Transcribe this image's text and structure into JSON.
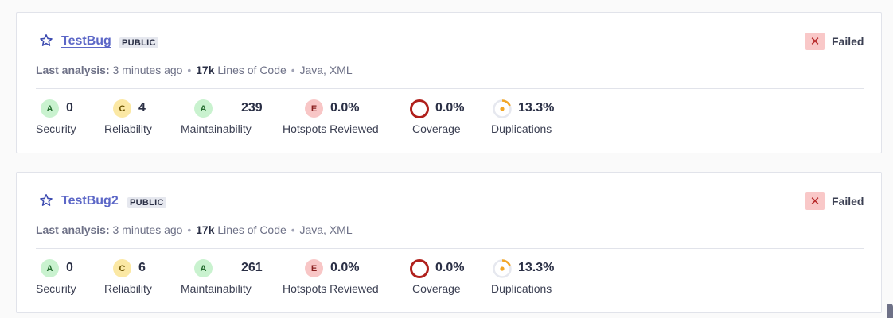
{
  "projects": [
    {
      "name": "TestBug",
      "visibility": "PUBLIC",
      "quality_gate": "Failed",
      "meta": {
        "last_analysis_label": "Last analysis:",
        "last_analysis_value": "3 minutes ago",
        "loc_value": "17k",
        "loc_label": "Lines of Code",
        "languages": "Java, XML"
      },
      "metrics": {
        "security": {
          "grade": "A",
          "value": "0",
          "label": "Security"
        },
        "reliability": {
          "grade": "C",
          "value": "4",
          "label": "Reliability"
        },
        "maintainability": {
          "grade": "A",
          "value": "239",
          "label": "Maintainability"
        },
        "hotspots": {
          "grade": "E",
          "value": "0.0%",
          "label": "Hotspots Reviewed"
        },
        "coverage": {
          "value": "0.0%",
          "label": "Coverage",
          "percent": 0.0
        },
        "duplications": {
          "value": "13.3%",
          "label": "Duplications",
          "percent": 13.3
        }
      }
    },
    {
      "name": "TestBug2",
      "visibility": "PUBLIC",
      "quality_gate": "Failed",
      "meta": {
        "last_analysis_label": "Last analysis:",
        "last_analysis_value": "3 minutes ago",
        "loc_value": "17k",
        "loc_label": "Lines of Code",
        "languages": "Java, XML"
      },
      "metrics": {
        "security": {
          "grade": "A",
          "value": "0",
          "label": "Security"
        },
        "reliability": {
          "grade": "C",
          "value": "6",
          "label": "Reliability"
        },
        "maintainability": {
          "grade": "A",
          "value": "261",
          "label": "Maintainability"
        },
        "hotspots": {
          "grade": "E",
          "value": "0.0%",
          "label": "Hotspots Reviewed"
        },
        "coverage": {
          "value": "0.0%",
          "label": "Coverage",
          "percent": 0.0
        },
        "duplications": {
          "value": "13.3%",
          "label": "Duplications",
          "percent": 13.3
        }
      }
    }
  ],
  "icons": {
    "star": "star-icon",
    "gate_failed": "close-icon",
    "gate_symbol": "✕"
  },
  "colors": {
    "link": "#5c67c7",
    "failed_bg": "#f9c8c8",
    "failed_fg": "#b62727",
    "coverage_ring": "#b0201c",
    "duplication_ring": "#f2a626",
    "grade_a": "#c9f2cf",
    "grade_c": "#fbe8a4",
    "grade_e": "#f8c6c6"
  }
}
